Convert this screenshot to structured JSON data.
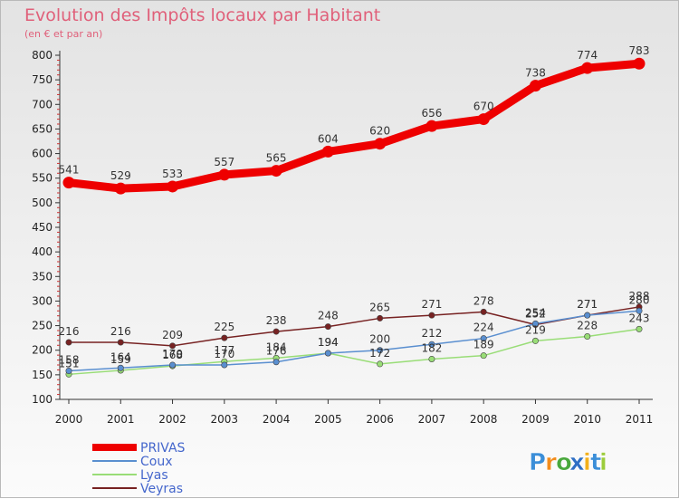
{
  "chart_data": {
    "type": "line",
    "title": "Evolution des Impôts locaux par Habitant",
    "subtitle": "(en € et par an)",
    "xlabel": "",
    "ylabel": "",
    "ylim": [
      100,
      800
    ],
    "yticks": [
      100,
      150,
      200,
      250,
      300,
      350,
      400,
      450,
      500,
      550,
      600,
      650,
      700,
      750,
      800
    ],
    "grid": false,
    "legend_position": "bottom-left",
    "categories": [
      "2000",
      "2001",
      "2002",
      "2003",
      "2004",
      "2005",
      "2006",
      "2007",
      "2008",
      "2009",
      "2010",
      "2011"
    ],
    "series": [
      {
        "name": "PRIVAS",
        "color": "#ee0000",
        "values": [
          541,
          529,
          533,
          557,
          565,
          604,
          620,
          656,
          670,
          738,
          774,
          783
        ]
      },
      {
        "name": "Coux",
        "color": "#5a8fd0",
        "values": [
          158,
          164,
          170,
          170,
          176,
          194,
          200,
          212,
          224,
          254,
          271,
          280
        ]
      },
      {
        "name": "Lyas",
        "color": "#99dd77",
        "values": [
          151,
          159,
          168,
          177,
          184,
          194,
          172,
          182,
          189,
          219,
          228,
          243
        ]
      },
      {
        "name": "Veyras",
        "color": "#772222",
        "values": [
          216,
          216,
          209,
          225,
          238,
          248,
          265,
          271,
          278,
          252,
          271,
          288
        ]
      }
    ]
  },
  "brand": {
    "letters": [
      "P",
      "r",
      "o",
      "x",
      "i",
      "t",
      "i"
    ],
    "colors": [
      "#3b8ed8",
      "#f28c1c",
      "#49a83c",
      "#2e6fc4",
      "#f2b01c",
      "#3b8ed8",
      "#9ccc3c"
    ]
  }
}
